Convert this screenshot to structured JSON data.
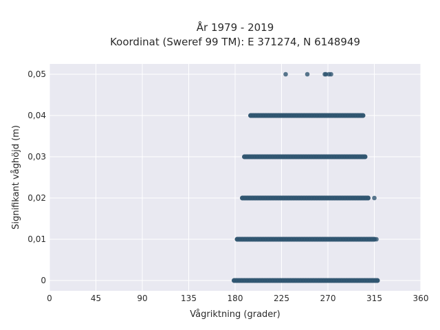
{
  "chart_data": {
    "type": "scatter",
    "title_lines": [
      "År 1979 - 2019",
      "Koordinat (Sweref 99 TM): E 371274, N 6148949"
    ],
    "xlabel": "Vågriktning (grader)",
    "ylabel": "Signifikant våghöjd (m)",
    "xlim": [
      0,
      360
    ],
    "ylim": [
      -0.0025,
      0.0525
    ],
    "x_ticks": [
      0,
      45,
      90,
      135,
      180,
      225,
      270,
      315,
      360
    ],
    "x_tick_labels": [
      "0",
      "45",
      "90",
      "135",
      "180",
      "225",
      "270",
      "315",
      "360"
    ],
    "y_ticks": [
      0,
      0.01,
      0.02,
      0.03,
      0.04,
      0.05
    ],
    "y_tick_labels": [
      "0",
      "0,01",
      "0,02",
      "0,03",
      "0,04",
      "0,05"
    ],
    "grid": true,
    "colors": {
      "plot_bg": "#e9e9f1",
      "grid": "#ffffff",
      "marker": "#2f5570"
    },
    "series": [
      {
        "y": 0,
        "x_min": 179,
        "x_max": 318,
        "isolated_x": []
      },
      {
        "y": 0.01,
        "x_min": 182,
        "x_max": 315,
        "isolated_x": [
          317
        ]
      },
      {
        "y": 0.02,
        "x_min": 187,
        "x_max": 309,
        "isolated_x": [
          315
        ]
      },
      {
        "y": 0.03,
        "x_min": 189,
        "x_max": 306,
        "isolated_x": []
      },
      {
        "y": 0.04,
        "x_min": 195,
        "x_max": 304,
        "isolated_x": []
      },
      {
        "y": 0.05,
        "x_min": null,
        "x_max": null,
        "isolated_x": [
          229,
          250,
          267,
          268,
          271,
          273
        ]
      }
    ]
  }
}
